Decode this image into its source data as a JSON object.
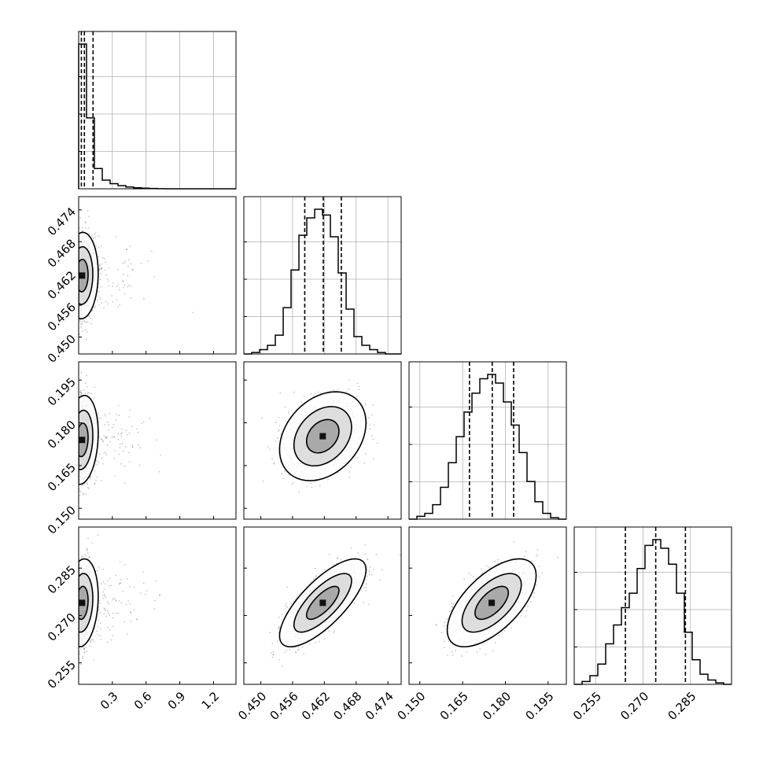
{
  "chart_data": {
    "type": "corner",
    "params": [
      {
        "range": [
          0.0,
          1.4
        ],
        "ticks": [
          0.3,
          0.6,
          0.9,
          1.2
        ],
        "tick_labels": [
          "0.3",
          "0.6",
          "0.9",
          "1.2"
        ]
      },
      {
        "range": [
          0.4468,
          0.4765
        ],
        "ticks": [
          0.45,
          0.456,
          0.462,
          0.468,
          0.474
        ],
        "tick_labels": [
          "0.450",
          "0.456",
          "0.462",
          "0.468",
          "0.474"
        ]
      },
      {
        "range": [
          0.1462,
          0.2014
        ],
        "ticks": [
          0.15,
          0.165,
          0.18,
          0.195
        ],
        "tick_labels": [
          "0.150",
          "0.165",
          "0.180",
          "0.195"
        ]
      },
      {
        "range": [
          0.2482,
          0.298
        ],
        "ticks": [
          0.255,
          0.27,
          0.285
        ],
        "tick_labels": [
          "0.255",
          "0.270",
          "0.285"
        ]
      }
    ],
    "histograms": [
      {
        "quantiles": [
          0.024,
          0.051,
          0.128
        ],
        "bins": [
          0.0,
          0.07,
          0.14,
          0.21,
          0.28,
          0.35,
          0.42,
          0.49,
          0.56,
          0.63,
          0.7,
          0.77,
          0.84,
          0.91,
          0.98,
          1.05,
          1.12,
          1.19,
          1.26,
          1.33,
          1.4
        ],
        "counts": [
          1.0,
          0.49,
          0.14,
          0.06,
          0.035,
          0.022,
          0.012,
          0.007,
          0.004,
          0.002,
          0.001,
          0.0,
          0.0,
          0.0,
          0.0,
          0.0,
          0.0,
          0.0,
          0.0,
          0.0
        ]
      },
      {
        "quantiles": [
          0.4583,
          0.4618,
          0.4652
        ],
        "bins": [
          0.4468,
          0.44829,
          0.44977,
          0.45126,
          0.45274,
          0.45423,
          0.45571,
          0.4572,
          0.45868,
          0.46017,
          0.46165,
          0.46314,
          0.46462,
          0.46611,
          0.46759,
          0.46908,
          0.47056,
          0.47205,
          0.47353,
          0.47502,
          0.4765
        ],
        "counts": [
          0.0,
          0.01,
          0.03,
          0.06,
          0.13,
          0.32,
          0.58,
          0.82,
          0.94,
          1.0,
          0.96,
          0.81,
          0.56,
          0.31,
          0.12,
          0.06,
          0.03,
          0.01,
          0.0,
          0.0
        ]
      },
      {
        "quantiles": [
          0.1674,
          0.1754,
          0.1829
        ],
        "bins": [
          0.1462,
          0.14896,
          0.15172,
          0.15448,
          0.15724,
          0.16,
          0.16276,
          0.16552,
          0.16828,
          0.17104,
          0.1738,
          0.17656,
          0.17932,
          0.18208,
          0.18484,
          0.1876,
          0.19036,
          0.19312,
          0.19588,
          0.19864,
          0.2014
        ],
        "counts": [
          0.0,
          0.02,
          0.04,
          0.1,
          0.22,
          0.39,
          0.57,
          0.74,
          0.87,
          0.97,
          1.0,
          0.94,
          0.81,
          0.65,
          0.46,
          0.26,
          0.12,
          0.04,
          0.01,
          0.0
        ]
      },
      {
        "quantiles": [
          0.2644,
          0.274,
          0.2834
        ],
        "bins": [
          0.2482,
          0.25069,
          0.25318,
          0.25567,
          0.25816,
          0.26065,
          0.26314,
          0.26563,
          0.26812,
          0.27061,
          0.2731,
          0.27559,
          0.27808,
          0.28057,
          0.28306,
          0.28555,
          0.28804,
          0.29053,
          0.29302,
          0.29551,
          0.298
        ],
        "counts": [
          0.0,
          0.02,
          0.06,
          0.14,
          0.28,
          0.41,
          0.53,
          0.63,
          0.8,
          0.96,
          1.0,
          0.94,
          0.83,
          0.63,
          0.36,
          0.17,
          0.07,
          0.03,
          0.01,
          0.0
        ]
      }
    ],
    "pairs": [
      {
        "x": 0,
        "y": 1,
        "center": [
          0.03,
          0.4616
        ],
        "sigma": [
          0.06,
          0.0034
        ],
        "rho": 0.05,
        "tail": true
      },
      {
        "x": 0,
        "y": 2,
        "center": [
          0.03,
          0.174
        ],
        "sigma": [
          0.06,
          0.0065
        ],
        "rho": 0.15,
        "tail": true
      },
      {
        "x": 0,
        "y": 3,
        "center": [
          0.03,
          0.274
        ],
        "sigma": [
          0.06,
          0.0058
        ],
        "rho": 0.15,
        "tail": true
      },
      {
        "x": 1,
        "y": 2,
        "center": [
          0.4617,
          0.1753
        ],
        "sigma": [
          0.0034,
          0.0065
        ],
        "rho": 0.3
      },
      {
        "x": 1,
        "y": 3,
        "center": [
          0.4617,
          0.274
        ],
        "sigma": [
          0.0034,
          0.0058
        ],
        "rho": 0.75
      },
      {
        "x": 2,
        "y": 3,
        "center": [
          0.1752,
          0.274
        ],
        "sigma": [
          0.0065,
          0.0058
        ],
        "rho": 0.62
      }
    ],
    "grid": true
  }
}
